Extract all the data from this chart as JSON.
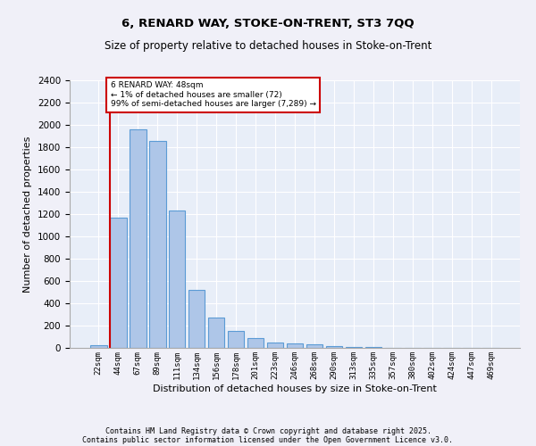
{
  "title1": "6, RENARD WAY, STOKE-ON-TRENT, ST3 7QQ",
  "title2": "Size of property relative to detached houses in Stoke-on-Trent",
  "xlabel": "Distribution of detached houses by size in Stoke-on-Trent",
  "ylabel": "Number of detached properties",
  "categories": [
    "22sqm",
    "44sqm",
    "67sqm",
    "89sqm",
    "111sqm",
    "134sqm",
    "156sqm",
    "178sqm",
    "201sqm",
    "223sqm",
    "246sqm",
    "268sqm",
    "290sqm",
    "313sqm",
    "335sqm",
    "357sqm",
    "380sqm",
    "402sqm",
    "424sqm",
    "447sqm",
    "469sqm"
  ],
  "values": [
    25,
    1170,
    1960,
    1855,
    1230,
    520,
    270,
    155,
    90,
    45,
    42,
    35,
    18,
    8,
    5,
    4,
    3,
    3,
    2,
    2,
    2
  ],
  "bar_color": "#aec6e8",
  "bar_edge_color": "#5b9bd5",
  "vline_color": "#cc0000",
  "annotation_text": "6 RENARD WAY: 48sqm\n← 1% of detached houses are smaller (72)\n99% of semi-detached houses are larger (7,289) →",
  "annotation_box_color": "#ffffff",
  "annotation_box_edge_color": "#cc0000",
  "ylim": [
    0,
    2400
  ],
  "background_color": "#e8eef8",
  "grid_color": "#ffffff",
  "fig_background": "#f0f0f8",
  "footer1": "Contains HM Land Registry data © Crown copyright and database right 2025.",
  "footer2": "Contains public sector information licensed under the Open Government Licence v3.0."
}
